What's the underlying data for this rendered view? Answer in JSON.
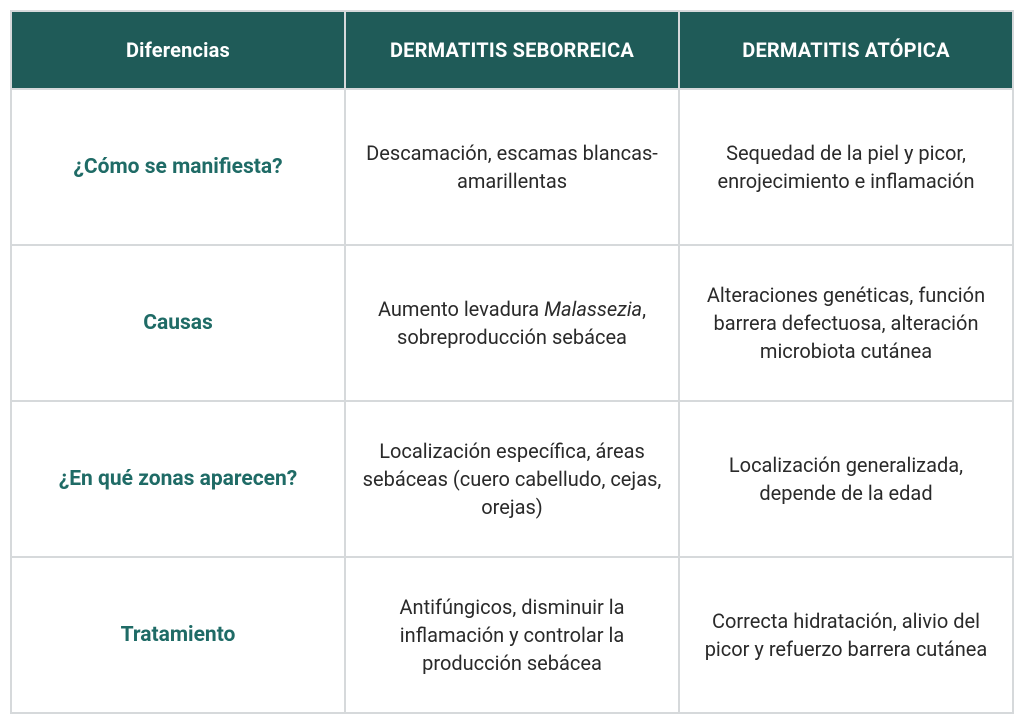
{
  "table": {
    "border_color": "#d6d9db",
    "header_bg": "#1f5b58",
    "header_text_color": "#ffffff",
    "row_head_color": "#1f6b66",
    "cell_text_color": "#2a2a2a",
    "header_fontsize": 20,
    "row_head_fontsize": 21,
    "cell_fontsize": 20,
    "columns": [
      "Diferencias",
      "DERMATITIS SEBORREICA",
      "DERMATITIS ATÓPICA"
    ],
    "rows": [
      {
        "head": "¿Cómo se manifiesta?",
        "seborreica": "Descamación, escamas blancas-amarillentas",
        "atopica": "Sequedad de la piel y picor, enrojecimiento e inflamación"
      },
      {
        "head": "Causas",
        "seborreica_pre": "Aumento levadura ",
        "seborreica_em": "Malassezia",
        "seborreica_post": ", sobreproducción sebácea",
        "atopica": "Alteraciones genéticas, función barrera defectuosa, alteración microbiota cutánea"
      },
      {
        "head": "¿En qué zonas aparecen?",
        "seborreica": "Localización específica, áreas sebáceas (cuero cabelludo, cejas, orejas)",
        "atopica": "Localización generalizada, depende de la edad"
      },
      {
        "head": "Tratamiento",
        "seborreica": "Antifúngicos, disminuir la inflamación y controlar la producción sebácea",
        "atopica": "Correcta hidratación, alivio del picor y refuerzo barrera cutánea"
      }
    ]
  }
}
